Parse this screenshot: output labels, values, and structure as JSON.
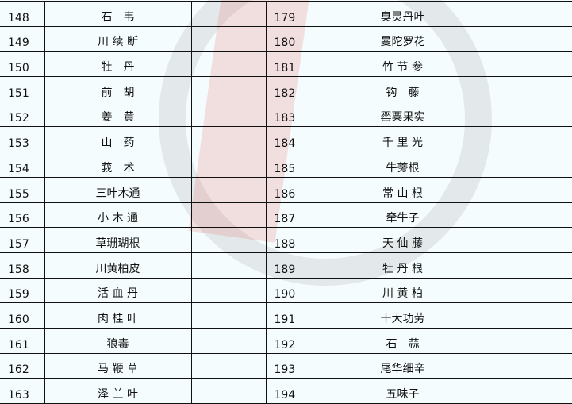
{
  "rows": [
    {
      "n1": "148",
      "name1": "石　韦",
      "n2": "179",
      "name2": "臭灵丹叶"
    },
    {
      "n1": "149",
      "name1": "川 续 断",
      "n2": "180",
      "name2": "曼陀罗花"
    },
    {
      "n1": "150",
      "name1": "牡　丹",
      "n2": "181",
      "name2": "竹 节 参"
    },
    {
      "n1": "151",
      "name1": "前　胡",
      "n2": "182",
      "name2": "钩　藤"
    },
    {
      "n1": "152",
      "name1": "姜　黄",
      "n2": "183",
      "name2": "罂粟果实"
    },
    {
      "n1": "153",
      "name1": "山　药",
      "n2": "184",
      "name2": "千 里 光"
    },
    {
      "n1": "154",
      "name1": "莪　术",
      "n2": "185",
      "name2": "牛蒡根"
    },
    {
      "n1": "155",
      "name1": "三叶木通",
      "n2": "186",
      "name2": "常 山 根"
    },
    {
      "n1": "156",
      "name1": "小 木 通",
      "n2": "187",
      "name2": "牵牛子"
    },
    {
      "n1": "157",
      "name1": "草珊瑚根",
      "n2": "188",
      "name2": "天 仙 藤"
    },
    {
      "n1": "158",
      "name1": "川黄柏皮",
      "n2": "189",
      "name2": "牡 丹 根"
    },
    {
      "n1": "159",
      "name1": "活 血 丹",
      "n2": "190",
      "name2": "川 黄 柏"
    },
    {
      "n1": "160",
      "name1": "肉 桂 叶",
      "n2": "191",
      "name2": "十大功劳"
    },
    {
      "n1": "161",
      "name1": "狼毒",
      "n2": "192",
      "name2": "石　蒜"
    },
    {
      "n1": "162",
      "name1": "马 鞭 草",
      "n2": "193",
      "name2": "尾华细辛"
    },
    {
      "n1": "163",
      "name1": "泽 兰 叶",
      "n2": "194",
      "name2": "五味子"
    }
  ]
}
